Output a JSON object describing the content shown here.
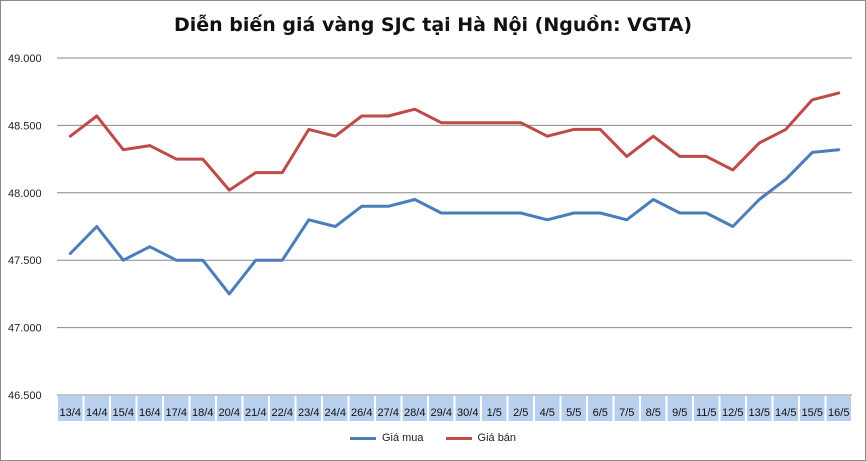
{
  "chart_data": {
    "type": "line",
    "title": "Diễn biến giá vàng SJC tại Hà Nội (Nguồn: VGTA)",
    "xlabel": "",
    "ylabel": "",
    "ylim": [
      46500,
      49000
    ],
    "yticks": [
      "46.500",
      "47.000",
      "47.500",
      "48.000",
      "48.500",
      "49.000"
    ],
    "ytick_values": [
      46500,
      47000,
      47500,
      48000,
      48500,
      49000
    ],
    "grid": true,
    "legend_position": "bottom",
    "categories": [
      "13/4",
      "14/4",
      "15/4",
      "16/4",
      "17/4",
      "18/4",
      "20/4",
      "21/4",
      "22/4",
      "23/4",
      "24/4",
      "26/4",
      "27/4",
      "28/4",
      "29/4",
      "30/4",
      "1/5",
      "2/5",
      "4/5",
      "5/5",
      "6/5",
      "7/5",
      "8/5",
      "9/5",
      "11/5",
      "12/5",
      "13/5",
      "14/5",
      "15/5",
      "16/5"
    ],
    "series": [
      {
        "name": "Giá mua",
        "color": "#4a7ebb",
        "values": [
          47550,
          47750,
          47500,
          47600,
          47500,
          47500,
          47250,
          47500,
          47500,
          47800,
          47750,
          47900,
          47900,
          47950,
          47850,
          47850,
          47850,
          47850,
          47800,
          47850,
          47850,
          47800,
          47950,
          47850,
          47850,
          47750,
          47950,
          48100,
          48300,
          48320
        ]
      },
      {
        "name": "Giá bán",
        "color": "#be4b48",
        "values": [
          48420,
          48570,
          48320,
          48350,
          48250,
          48250,
          48020,
          48150,
          48150,
          48470,
          48420,
          48570,
          48570,
          48620,
          48520,
          48520,
          48520,
          48520,
          48420,
          48470,
          48470,
          48270,
          48420,
          48270,
          48270,
          48170,
          48370,
          48470,
          48690,
          48740
        ]
      }
    ]
  }
}
